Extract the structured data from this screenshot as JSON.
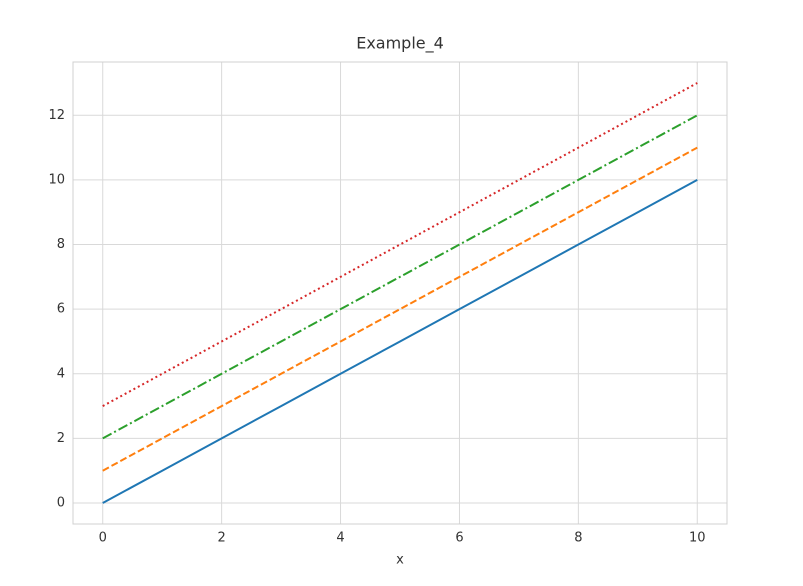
{
  "chart_data": {
    "type": "line",
    "title": "Example_4",
    "x_label": "x",
    "x": [
      0,
      1,
      2,
      3,
      4,
      5,
      6,
      7,
      8,
      9,
      10
    ],
    "series": [
      {
        "color": "#1f77b4",
        "linestyle": "solid",
        "values": [
          0,
          1,
          2,
          3,
          4,
          5,
          6,
          7,
          8,
          9,
          10
        ]
      },
      {
        "color": "#ff7f0e",
        "linestyle": "dashed",
        "values": [
          1,
          2,
          3,
          4,
          5,
          6,
          7,
          8,
          9,
          10,
          11
        ]
      },
      {
        "color": "#2ca02c",
        "linestyle": "dashdot",
        "values": [
          2,
          3,
          4,
          5,
          6,
          7,
          8,
          9,
          10,
          11,
          12
        ]
      },
      {
        "color": "#d62728",
        "linestyle": "dotted",
        "values": [
          3,
          4,
          5,
          6,
          7,
          8,
          9,
          10,
          11,
          12,
          13
        ]
      }
    ],
    "xlim": [
      -0.5,
      10.5
    ],
    "xticks": [
      0,
      2,
      4,
      6,
      8,
      10
    ],
    "ylim": [
      -0.65,
      13.65
    ],
    "yticks": [
      0,
      2,
      4,
      6,
      8,
      10,
      12
    ],
    "grid": true
  }
}
